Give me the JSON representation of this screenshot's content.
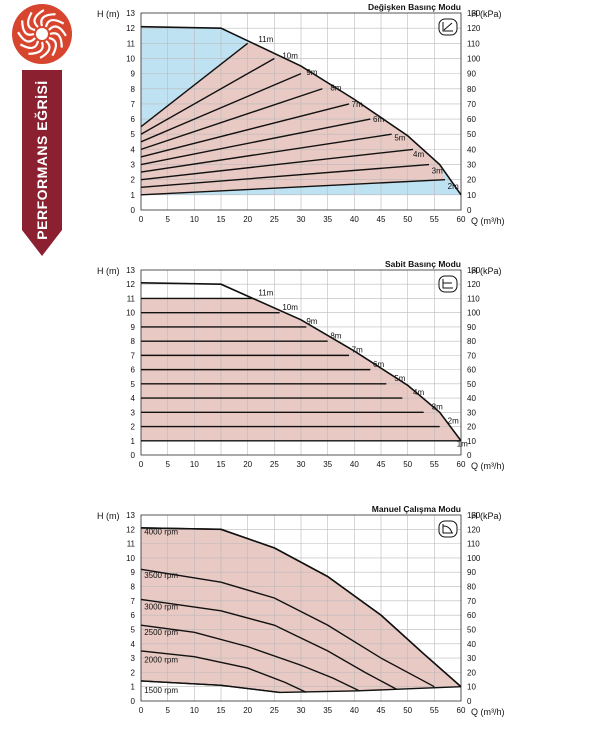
{
  "side_label": "PERFORMANS EĞRİSİ",
  "colors": {
    "brand": "#8b2130",
    "accent": "#d8452f",
    "fill_pink": "#e8c9c3",
    "fill_blue": "#bfe2f3",
    "line": "#111111"
  },
  "chart_data": [
    {
      "type": "line",
      "title": "Değişken Basınç Modu",
      "mode_icon": "variable-pressure-icon",
      "xlabel": "Q (m³/h)",
      "ylabel_left": "H (m)",
      "ylabel_right": "H (kPa)",
      "xlim": [
        0,
        60
      ],
      "ylim": [
        0,
        13
      ],
      "ylim_right": [
        0,
        130
      ],
      "xticks": [
        0,
        5,
        10,
        15,
        20,
        25,
        30,
        35,
        40,
        45,
        50,
        55,
        60
      ],
      "yticks": [
        0,
        1,
        2,
        3,
        4,
        5,
        6,
        7,
        8,
        9,
        10,
        11,
        12,
        13
      ],
      "yticks_right": [
        0,
        10,
        20,
        30,
        40,
        50,
        60,
        70,
        80,
        90,
        100,
        110,
        120,
        130
      ],
      "max_curve": [
        [
          0,
          12.1
        ],
        [
          15,
          12.0
        ],
        [
          21,
          11.0
        ],
        [
          30,
          9.5
        ],
        [
          40,
          7.3
        ],
        [
          50,
          4.9
        ],
        [
          56,
          3.0
        ],
        [
          60,
          1.0
        ]
      ],
      "blue_region": [
        [
          0,
          12.1
        ],
        [
          15,
          12.0
        ],
        [
          20,
          11.0
        ],
        [
          0,
          5.5
        ]
      ],
      "series": [
        {
          "name": "11m",
          "label_x": 22,
          "label_y": 11.1,
          "points": [
            [
              0,
              5.5
            ],
            [
              20,
              11.0
            ]
          ]
        },
        {
          "name": "10m",
          "label_x": 26.5,
          "label_y": 10.0,
          "points": [
            [
              0,
              5.0
            ],
            [
              25,
              10.0
            ]
          ]
        },
        {
          "name": "9m",
          "label_x": 31,
          "label_y": 8.9,
          "points": [
            [
              0,
              4.5
            ],
            [
              30,
              9.0
            ]
          ]
        },
        {
          "name": "8m",
          "label_x": 35.5,
          "label_y": 7.9,
          "points": [
            [
              0,
              4.0
            ],
            [
              34,
              8.0
            ]
          ]
        },
        {
          "name": "7m",
          "label_x": 39.5,
          "label_y": 6.8,
          "points": [
            [
              0,
              3.5
            ],
            [
              39,
              7.0
            ]
          ]
        },
        {
          "name": "6m",
          "label_x": 43.5,
          "label_y": 5.8,
          "points": [
            [
              0,
              3.0
            ],
            [
              43,
              6.0
            ]
          ]
        },
        {
          "name": "5m",
          "label_x": 47.5,
          "label_y": 4.6,
          "points": [
            [
              0,
              2.5
            ],
            [
              47,
              5.0
            ]
          ]
        },
        {
          "name": "4m",
          "label_x": 51,
          "label_y": 3.5,
          "points": [
            [
              0,
              2.0
            ],
            [
              51,
              4.0
            ]
          ]
        },
        {
          "name": "3m",
          "label_x": 54.5,
          "label_y": 2.4,
          "points": [
            [
              0,
              1.5
            ],
            [
              54,
              3.0
            ]
          ]
        },
        {
          "name": "2m",
          "label_x": 57.5,
          "label_y": 1.4,
          "points": [
            [
              0,
              1.0
            ],
            [
              57,
              2.0
            ]
          ]
        }
      ],
      "grid": true
    },
    {
      "type": "line",
      "title": "Sabit Basınç Modu",
      "mode_icon": "constant-pressure-icon",
      "xlabel": "Q (m³/h)",
      "ylabel_left": "H (m)",
      "ylabel_right": "H (kPa)",
      "xlim": [
        0,
        60
      ],
      "ylim": [
        0,
        13
      ],
      "ylim_right": [
        0,
        130
      ],
      "xticks": [
        0,
        5,
        10,
        15,
        20,
        25,
        30,
        35,
        40,
        45,
        50,
        55,
        60
      ],
      "yticks": [
        0,
        1,
        2,
        3,
        4,
        5,
        6,
        7,
        8,
        9,
        10,
        11,
        12,
        13
      ],
      "yticks_right": [
        0,
        10,
        20,
        30,
        40,
        50,
        60,
        70,
        80,
        90,
        100,
        110,
        120,
        130
      ],
      "max_curve": [
        [
          0,
          12.1
        ],
        [
          15,
          12.0
        ],
        [
          21,
          11.0
        ],
        [
          30,
          9.5
        ],
        [
          40,
          7.3
        ],
        [
          50,
          4.9
        ],
        [
          56,
          3.0
        ],
        [
          60,
          1.0
        ]
      ],
      "series": [
        {
          "name": "11m",
          "label_x": 22,
          "label_y": 11.2,
          "points": [
            [
              0,
              11
            ],
            [
              21,
              11
            ]
          ]
        },
        {
          "name": "10m",
          "label_x": 26.5,
          "label_y": 10.2,
          "points": [
            [
              0,
              10
            ],
            [
              26,
              10
            ]
          ]
        },
        {
          "name": "9m",
          "label_x": 31,
          "label_y": 9.2,
          "points": [
            [
              0,
              9
            ],
            [
              31,
              9
            ]
          ]
        },
        {
          "name": "8m",
          "label_x": 35.5,
          "label_y": 8.2,
          "points": [
            [
              0,
              8
            ],
            [
              35,
              8
            ]
          ]
        },
        {
          "name": "7m",
          "label_x": 39.5,
          "label_y": 7.2,
          "points": [
            [
              0,
              7
            ],
            [
              39,
              7
            ]
          ]
        },
        {
          "name": "6m",
          "label_x": 43.5,
          "label_y": 6.2,
          "points": [
            [
              0,
              6
            ],
            [
              43,
              6
            ]
          ]
        },
        {
          "name": "5m",
          "label_x": 47.5,
          "label_y": 5.2,
          "points": [
            [
              0,
              5
            ],
            [
              46,
              5
            ]
          ]
        },
        {
          "name": "4m",
          "label_x": 51,
          "label_y": 4.2,
          "points": [
            [
              0,
              4
            ],
            [
              49,
              4
            ]
          ]
        },
        {
          "name": "3m",
          "label_x": 54.5,
          "label_y": 3.2,
          "points": [
            [
              0,
              3
            ],
            [
              53,
              3
            ]
          ]
        },
        {
          "name": "2m",
          "label_x": 57.5,
          "label_y": 2.2,
          "points": [
            [
              0,
              2
            ],
            [
              56,
              2
            ]
          ]
        },
        {
          "name": "1m",
          "label_x": 59.2,
          "label_y": 0.6,
          "points": [
            [
              0,
              1
            ],
            [
              60,
              1
            ]
          ]
        }
      ],
      "grid": true
    },
    {
      "type": "line",
      "title": "Manuel Çalışma Modu",
      "mode_icon": "manual-mode-icon",
      "xlabel": "Q (m³/h)",
      "ylabel_left": "H (m)",
      "ylabel_right": "H (kPa)",
      "xlim": [
        0,
        60
      ],
      "ylim": [
        0,
        13
      ],
      "ylim_right": [
        0,
        130
      ],
      "xticks": [
        0,
        5,
        10,
        15,
        20,
        25,
        30,
        35,
        40,
        45,
        50,
        55,
        60
      ],
      "yticks": [
        0,
        1,
        2,
        3,
        4,
        5,
        6,
        7,
        8,
        9,
        10,
        11,
        12,
        13
      ],
      "yticks_right": [
        0,
        10,
        20,
        30,
        40,
        50,
        60,
        70,
        80,
        90,
        100,
        110,
        120,
        130
      ],
      "max_curve": [
        [
          0,
          12.1
        ],
        [
          15,
          12.0
        ],
        [
          25,
          10.7
        ],
        [
          35,
          8.7
        ],
        [
          45,
          6.0
        ],
        [
          53,
          3.3
        ],
        [
          60,
          1.0
        ]
      ],
      "bottom_boundary": [
        [
          0,
          1.4
        ],
        [
          15,
          1.1
        ],
        [
          26,
          0.6
        ],
        [
          40,
          0.7
        ],
        [
          50,
          0.85
        ],
        [
          60,
          1.0
        ]
      ],
      "series": [
        {
          "name": "4000 rpm",
          "label_x": 0.6,
          "label_y": 11.65,
          "points": [
            [
              0,
              12.1
            ],
            [
              15,
              12.0
            ],
            [
              25,
              10.7
            ],
            [
              35,
              8.7
            ],
            [
              45,
              6.0
            ],
            [
              53,
              3.3
            ],
            [
              60,
              1.0
            ]
          ]
        },
        {
          "name": "3500 rpm",
          "label_x": 0.6,
          "label_y": 8.6,
          "points": [
            [
              0,
              9.2
            ],
            [
              15,
              8.3
            ],
            [
              25,
              7.2
            ],
            [
              35,
              5.3
            ],
            [
              45,
              3.0
            ],
            [
              55,
              1.0
            ]
          ]
        },
        {
          "name": "3000 rpm",
          "label_x": 0.6,
          "label_y": 6.4,
          "points": [
            [
              0,
              7.1
            ],
            [
              15,
              6.3
            ],
            [
              25,
              5.3
            ],
            [
              35,
              3.5
            ],
            [
              42,
              2.0
            ],
            [
              48,
              0.8
            ]
          ]
        },
        {
          "name": "2500 rpm",
          "label_x": 0.6,
          "label_y": 4.6,
          "points": [
            [
              0,
              5.3
            ],
            [
              10,
              4.8
            ],
            [
              20,
              3.8
            ],
            [
              30,
              2.5
            ],
            [
              36,
              1.6
            ],
            [
              41,
              0.7
            ]
          ]
        },
        {
          "name": "2000 rpm",
          "label_x": 0.6,
          "label_y": 2.7,
          "points": [
            [
              0,
              3.5
            ],
            [
              10,
              3.1
            ],
            [
              20,
              2.3
            ],
            [
              27,
              1.3
            ],
            [
              31,
              0.6
            ]
          ]
        },
        {
          "name": "1500 rpm",
          "label_x": 0.6,
          "label_y": 0.55,
          "points": [
            [
              0,
              1.4
            ],
            [
              15,
              1.1
            ],
            [
              26,
              0.6
            ]
          ]
        }
      ],
      "grid": true
    }
  ]
}
